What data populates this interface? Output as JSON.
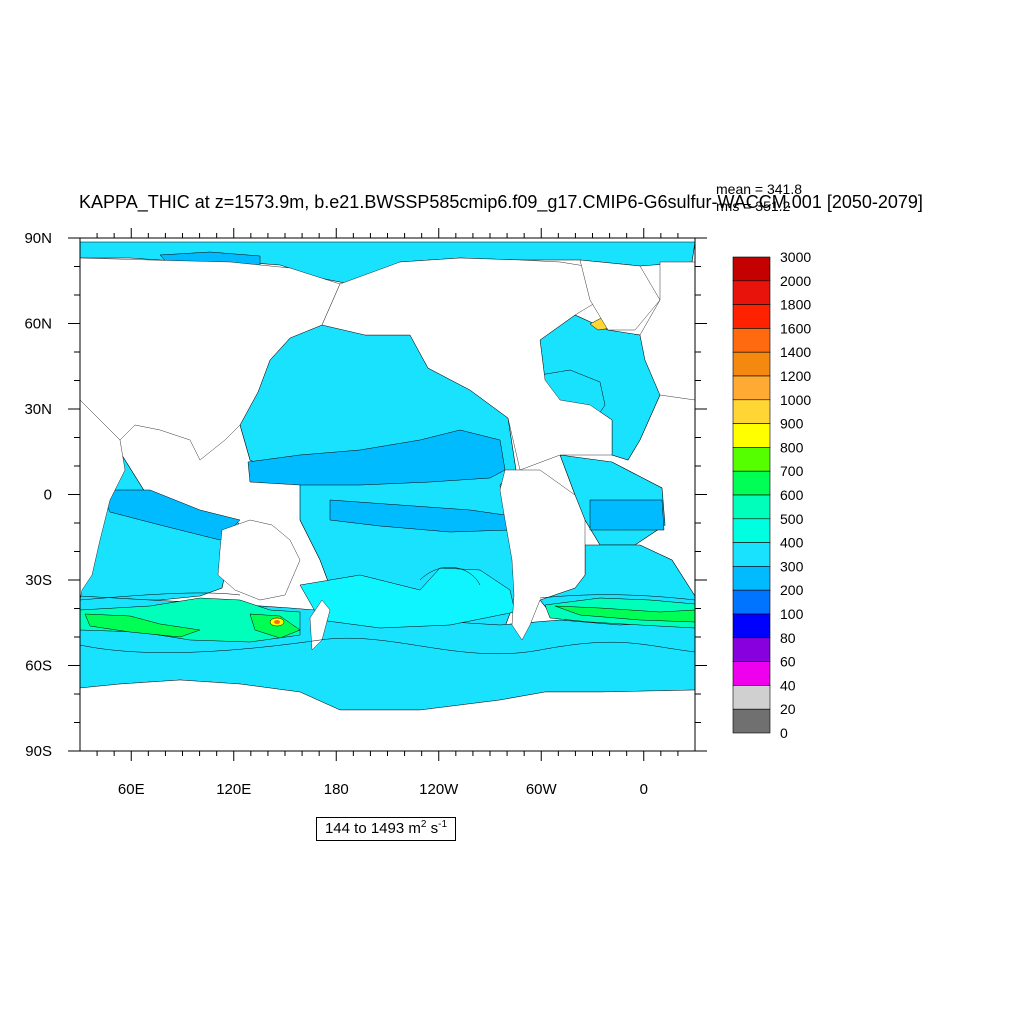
{
  "chart_data": {
    "type": "heatmap",
    "title": "KAPPA_THIC at z=1573.9m, b.e21.BWSSP585cmip6.f09_g17.CMIP6-G6sulfur-WACCM.001 [2050-2079]",
    "stats": {
      "mean": "mean = 341.8",
      "rms": "rms = 351.2"
    },
    "x_ticks": [
      "60E",
      "120E",
      "180",
      "120W",
      "60W",
      "0"
    ],
    "y_ticks": [
      "90N",
      "60N",
      "30N",
      "0",
      "30S",
      "60S",
      "90S"
    ],
    "xlim": [
      30,
      390
    ],
    "ylim": [
      -90,
      90
    ],
    "colorbar": {
      "levels": [
        "3000",
        "2000",
        "1800",
        "1600",
        "1400",
        "1200",
        "1000",
        "900",
        "800",
        "700",
        "600",
        "500",
        "400",
        "300",
        "200",
        "100",
        "80",
        "60",
        "40",
        "20",
        "0"
      ],
      "colors": [
        "#c40000",
        "#e8140c",
        "#ff2200",
        "#ff6a10",
        "#f5880f",
        "#ffaa33",
        "#ffd633",
        "#ffff00",
        "#55ff00",
        "#00ff55",
        "#00ffbb",
        "#00ffe0",
        "#19e2ff",
        "#00bbff",
        "#0073ff",
        "#0000ff",
        "#8800dd",
        "#ee00ee",
        "#d0d0d0",
        "#707070"
      ]
    },
    "range_label": {
      "prefix": "144 to 1493 m",
      "exp1": "2",
      "mid": " s",
      "exp2": "-1"
    }
  }
}
